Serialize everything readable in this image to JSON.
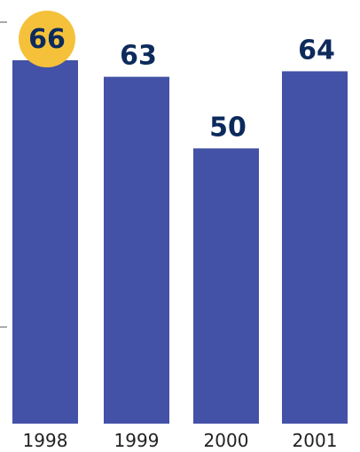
{
  "chart_data": {
    "type": "bar",
    "categories": [
      "1998",
      "1999",
      "2000",
      "2001"
    ],
    "values": [
      66,
      63,
      50,
      64
    ],
    "highlight_index": 0,
    "ylim": [
      0,
      66
    ],
    "colors": {
      "bar": "#4352a6",
      "label": "#0d2a5c",
      "highlight_badge": "#f5c13a",
      "axis_tick": "#555555"
    }
  }
}
